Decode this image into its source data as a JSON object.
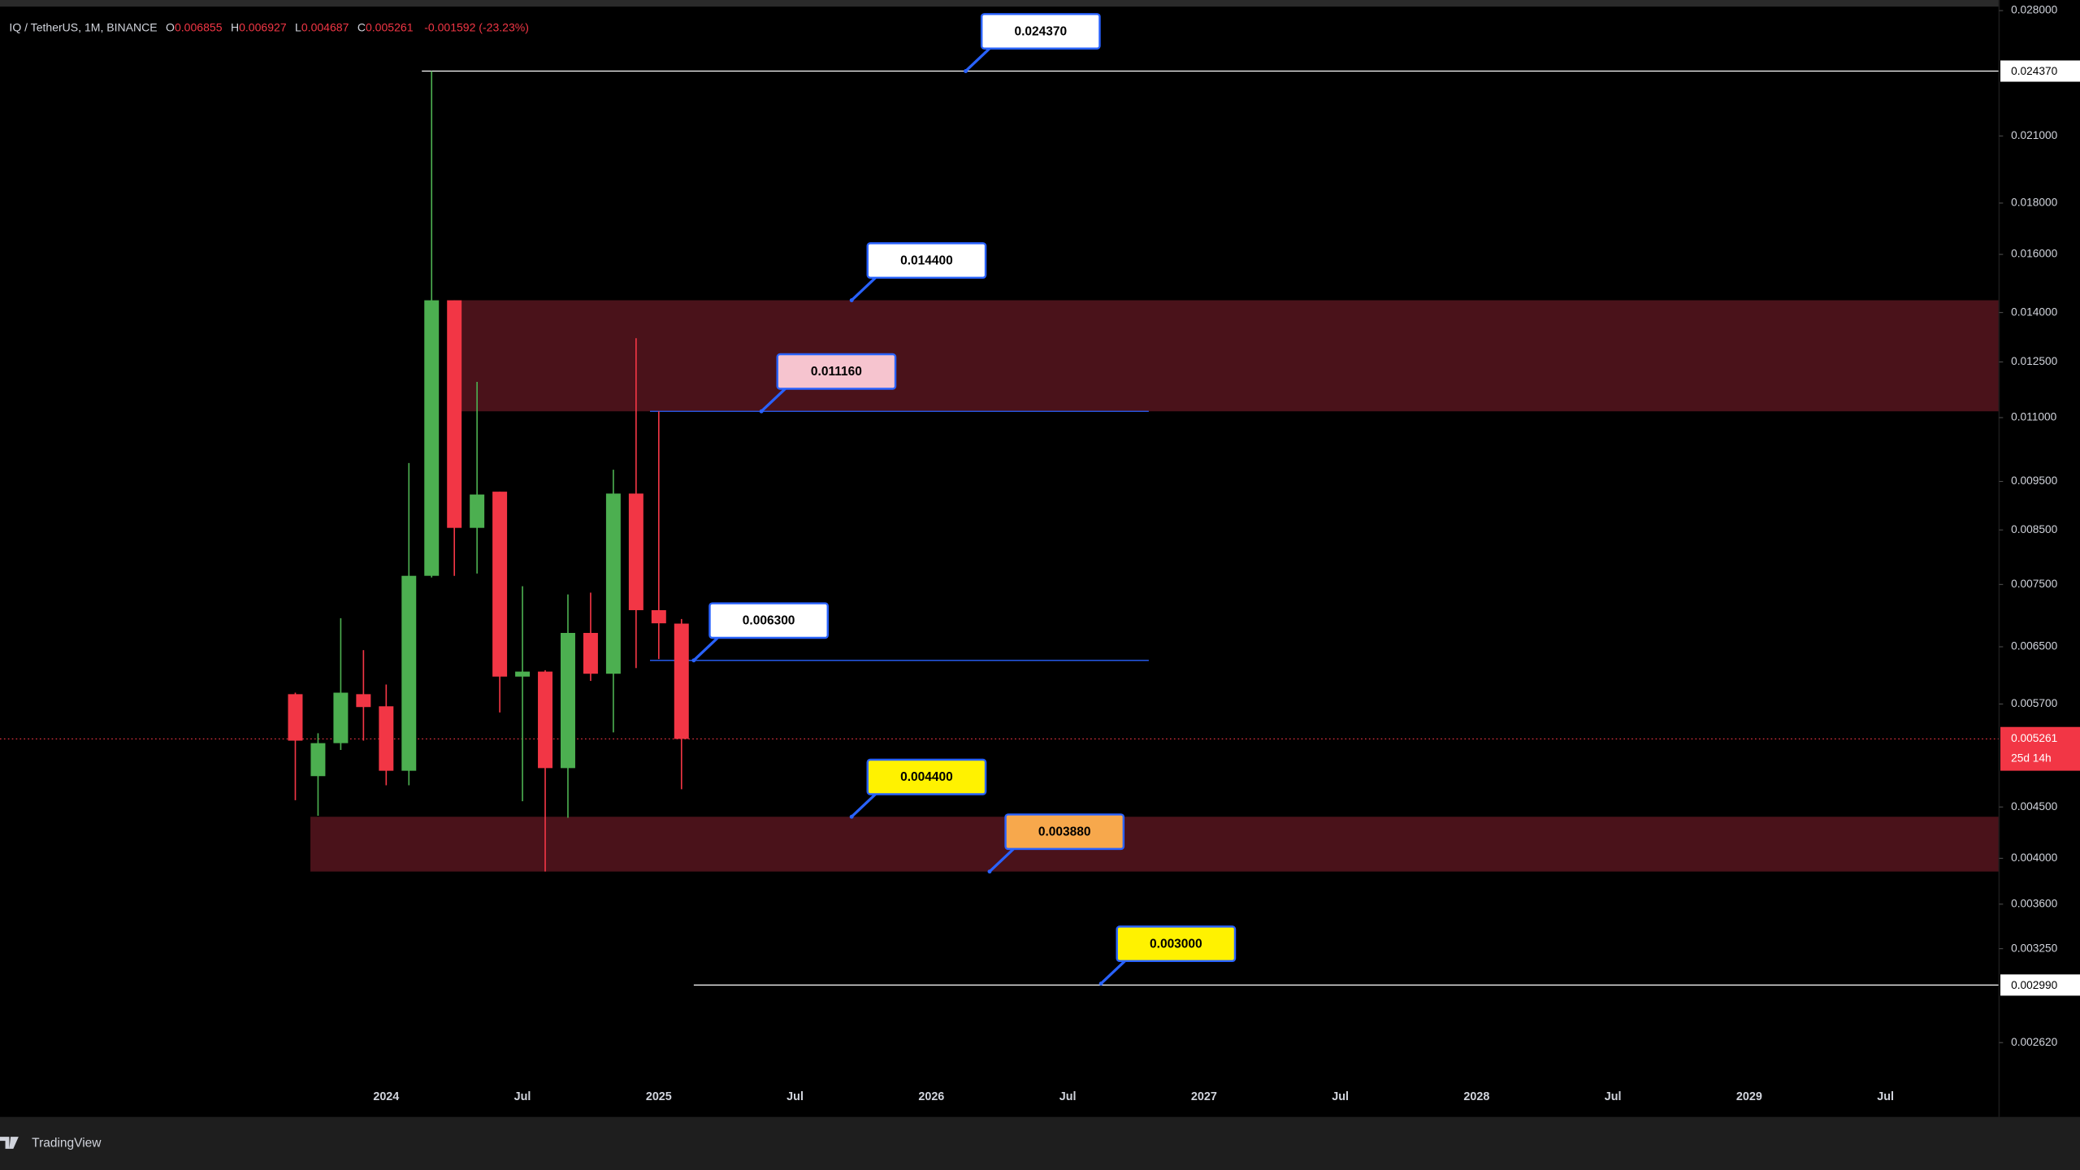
{
  "chart_data": {
    "type": "candlestick",
    "header": {
      "symbol": "IQ / TetherUS, 1M, BINANCE",
      "o": "O",
      "h": "H",
      "l": "L",
      "c": "C",
      "change": "-0.001592 (-23.23%)"
    },
    "x": [
      "2023-09",
      "2023-10",
      "2023-11",
      "2023-12",
      "2024-01",
      "2024-02",
      "2024-03",
      "2024-04",
      "2024-05",
      "2024-06",
      "2024-07",
      "2024-08",
      "2024-09",
      "2024-10",
      "2024-11",
      "2024-12",
      "2025-01",
      "2025-02"
    ],
    "open": [
      0.00583,
      0.00483,
      0.00521,
      0.00583,
      0.00567,
      0.00489,
      0.00765,
      0.0144,
      0.00854,
      0.00928,
      0.00607,
      0.00614,
      0.00492,
      0.00671,
      0.00611,
      0.00924,
      0.00707,
      0.006855
    ],
    "high": [
      0.00585,
      0.00533,
      0.00694,
      0.00645,
      0.00596,
      0.00991,
      0.02437,
      0.0144,
      0.01194,
      0.00928,
      0.00747,
      0.00616,
      0.00733,
      0.00736,
      0.00976,
      0.0132,
      0.01116,
      0.006927
    ],
    "low": [
      0.00457,
      0.00441,
      0.00513,
      0.00524,
      0.00473,
      0.00473,
      0.00762,
      0.00765,
      0.00769,
      0.00559,
      0.00456,
      0.00388,
      0.00439,
      0.00601,
      0.00534,
      0.00619,
      0.00632,
      0.004687
    ],
    "close": [
      0.00524,
      0.00521,
      0.00585,
      0.00566,
      0.00489,
      0.00765,
      0.0144,
      0.00854,
      0.00922,
      0.00607,
      0.00614,
      0.00492,
      0.00671,
      0.00611,
      0.00924,
      0.00707,
      0.00686,
      0.005261
    ],
    "up_color": "#4caf50",
    "down_color": "#f23645",
    "xlim": [
      "2022-08",
      "2029-12"
    ],
    "xticks": [
      {
        "value": "2024-01",
        "label": "2024"
      },
      {
        "value": "2024-07",
        "label": "Jul"
      },
      {
        "value": "2025-01",
        "label": "2025"
      },
      {
        "value": "2025-07",
        "label": "Jul"
      },
      {
        "value": "2026-01",
        "label": "2026"
      },
      {
        "value": "2026-07",
        "label": "Jul"
      },
      {
        "value": "2027-01",
        "label": "2027"
      },
      {
        "value": "2027-07",
        "label": "Jul"
      },
      {
        "value": "2028-01",
        "label": "2028"
      },
      {
        "value": "2028-07",
        "label": "Jul"
      },
      {
        "value": "2029-01",
        "label": "2029"
      },
      {
        "value": "2029-07",
        "label": "Jul"
      }
    ],
    "ylim": [
      0.002435,
      0.02869
    ],
    "log_scale": true,
    "yticks": [
      {
        "value": 0.028,
        "label": "0.028000"
      },
      {
        "value": 0.021,
        "label": "0.021000"
      },
      {
        "value": 0.018,
        "label": "0.018000"
      },
      {
        "value": 0.016,
        "label": "0.016000"
      },
      {
        "value": 0.014,
        "label": "0.014000"
      },
      {
        "value": 0.0125,
        "label": "0.012500"
      },
      {
        "value": 0.011,
        "label": "0.011000"
      },
      {
        "value": 0.0095,
        "label": "0.009500"
      },
      {
        "value": 0.0085,
        "label": "0.008500"
      },
      {
        "value": 0.0075,
        "label": "0.007500"
      },
      {
        "value": 0.0065,
        "label": "0.006500"
      },
      {
        "value": 0.0057,
        "label": "0.005700"
      },
      {
        "value": 0.0045,
        "label": "0.004500"
      },
      {
        "value": 0.004,
        "label": "0.004000"
      },
      {
        "value": 0.0036,
        "label": "0.003600"
      },
      {
        "value": 0.00325,
        "label": "0.003250"
      },
      {
        "value": 0.00262,
        "label": "0.002620"
      }
    ],
    "zones": [
      {
        "top": 0.0144,
        "bottom": 0.01116,
        "color": "#4a121a"
      },
      {
        "top": 0.0044,
        "bottom": 0.00388,
        "color": "#4a121a"
      }
    ],
    "level_lines": [
      {
        "value": 0.02437,
        "label": "0.024370",
        "color": "#ffffff"
      },
      {
        "value": 0.01116,
        "color": "#2962ff"
      },
      {
        "value": 0.0063,
        "color": "#2962ff"
      },
      {
        "value": 0.00299,
        "label": "0.002990",
        "color": "#ffffff"
      }
    ],
    "callouts": [
      {
        "value": 0.02437,
        "label": "0.024370",
        "fill": "#ffffff"
      },
      {
        "value": 0.0144,
        "label": "0.014400",
        "fill": "#ffffff"
      },
      {
        "value": 0.01116,
        "label": "0.011160",
        "fill": "#f6c4cf"
      },
      {
        "value": 0.0063,
        "label": "0.006300",
        "fill": "#ffffff"
      },
      {
        "value": 0.0044,
        "label": "0.004400",
        "fill": "#fff200"
      },
      {
        "value": 0.00388,
        "label": "0.003880",
        "fill": "#f7a84c"
      },
      {
        "value": 0.003,
        "label": "0.003000",
        "fill": "#fff200"
      }
    ],
    "countdown": "25d 14h",
    "brand": "TradingView"
  }
}
